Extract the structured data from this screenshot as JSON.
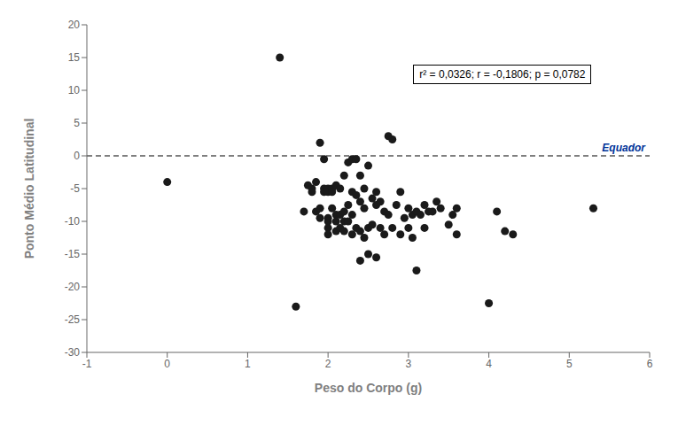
{
  "chart_data": {
    "type": "scatter",
    "title": "",
    "xlabel": "Peso do Corpo (g)",
    "ylabel": "Ponto Médio Latitudinal",
    "xlim": [
      -1,
      6
    ],
    "ylim": [
      -30,
      20
    ],
    "xticks": [
      -1,
      0,
      1,
      2,
      3,
      4,
      5,
      6
    ],
    "yticks": [
      -30,
      -25,
      -20,
      -15,
      -10,
      -5,
      0,
      5,
      10,
      15,
      20
    ],
    "color": "#1a1a1a",
    "marker": "circle",
    "grid": false,
    "annotations": [
      "r² = 0,0326; r = -0,1806; p = 0,0782"
    ],
    "reference_line": {
      "y": 0,
      "label": "Equador",
      "color": "#003399",
      "line_style": "dashed"
    },
    "x": [
      0.0,
      1.4,
      1.6,
      1.7,
      1.75,
      1.8,
      1.8,
      1.85,
      1.85,
      1.9,
      1.9,
      1.9,
      1.95,
      1.95,
      1.95,
      2.0,
      2.0,
      2.0,
      2.0,
      2.0,
      2.0,
      2.05,
      2.05,
      2.05,
      2.1,
      2.1,
      2.1,
      2.1,
      2.15,
      2.15,
      2.15,
      2.2,
      2.2,
      2.2,
      2.2,
      2.25,
      2.25,
      2.25,
      2.3,
      2.3,
      2.3,
      2.3,
      2.35,
      2.35,
      2.35,
      2.4,
      2.4,
      2.4,
      2.4,
      2.45,
      2.45,
      2.45,
      2.5,
      2.5,
      2.5,
      2.55,
      2.55,
      2.6,
      2.6,
      2.6,
      2.65,
      2.65,
      2.7,
      2.7,
      2.75,
      2.75,
      2.8,
      2.8,
      2.85,
      2.9,
      2.9,
      2.95,
      3.0,
      3.0,
      3.05,
      3.05,
      3.1,
      3.1,
      3.15,
      3.2,
      3.2,
      3.25,
      3.3,
      3.35,
      3.4,
      3.5,
      3.55,
      3.6,
      3.6,
      4.0,
      4.1,
      4.2,
      4.3,
      5.3
    ],
    "values": [
      -4.0,
      15.0,
      -23.0,
      -8.5,
      -4.5,
      -5.0,
      -5.5,
      -4.0,
      -8.5,
      -9.5,
      -8.0,
      2.0,
      -0.5,
      -5.0,
      -5.5,
      -5.0,
      -5.5,
      -9.5,
      -10.0,
      -11.0,
      -12.0,
      -5.0,
      -5.5,
      -8.0,
      -4.5,
      -9.0,
      -10.0,
      -11.5,
      -5.0,
      -9.0,
      -11.0,
      -3.0,
      -8.5,
      -10.0,
      -11.5,
      -1.0,
      -7.5,
      -10.0,
      -0.5,
      -5.5,
      -9.0,
      -12.0,
      -0.5,
      -6.0,
      -11.0,
      -3.0,
      -7.0,
      -11.5,
      -16.0,
      -5.0,
      -8.0,
      -12.5,
      -1.5,
      -11.0,
      -15.0,
      -6.5,
      -10.5,
      -5.5,
      -7.5,
      -15.5,
      -7.0,
      -11.0,
      -8.5,
      -12.0,
      3.0,
      -9.0,
      2.5,
      -11.0,
      -7.5,
      -5.5,
      -12.0,
      -9.5,
      -8.0,
      -11.0,
      -9.0,
      -12.5,
      -8.5,
      -17.5,
      -9.0,
      -7.5,
      -11.0,
      -8.5,
      -8.5,
      -7.0,
      -8.0,
      -10.5,
      -9.0,
      -8.0,
      -12.0,
      -22.5,
      -8.5,
      -11.5,
      -12.0,
      -8.0
    ]
  }
}
